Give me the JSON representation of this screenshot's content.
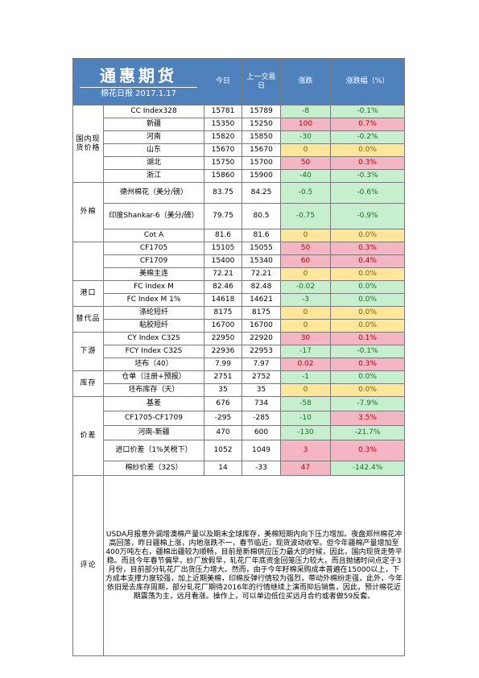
{
  "header": {
    "brand": "通惠期货",
    "subtitle": "棉花日报 2017.1.17",
    "col_today": "今日",
    "col_prev": "上一交易日",
    "col_change": "涨跌",
    "col_pct": "涨跌幅（%）"
  },
  "groups": {
    "domestic": "国内现货价格",
    "foreign": "外棉",
    "port": "港口",
    "substitute": "替代品",
    "downstream": "下游",
    "inventory": "库存",
    "spread": "价差",
    "comment": "评论"
  },
  "rows": [
    {
      "name": "CC Index328",
      "today": "15781",
      "prev": "15789",
      "change": "-8",
      "pct": "-0.1%",
      "sign": "neg"
    },
    {
      "name": "新疆",
      "today": "15350",
      "prev": "15250",
      "change": "100",
      "pct": "0.7%",
      "sign": "pos"
    },
    {
      "name": "河南",
      "today": "15820",
      "prev": "15850",
      "change": "-30",
      "pct": "-0.2%",
      "sign": "neg"
    },
    {
      "name": "山东",
      "today": "15670",
      "prev": "15670",
      "change": "0",
      "pct": "0.0%",
      "sign": "zero"
    },
    {
      "name": "湖北",
      "today": "15750",
      "prev": "15700",
      "change": "50",
      "pct": "0.3%",
      "sign": "pos"
    },
    {
      "name": "浙江",
      "today": "15860",
      "prev": "15900",
      "change": "-40",
      "pct": "-0.3%",
      "sign": "neg"
    },
    {
      "name": "德州棉花（美分/磅）",
      "today": "83.75",
      "prev": "84.25",
      "change": "-0.5",
      "pct": "-0.6%",
      "sign": "neg"
    },
    {
      "name": "印度Shankar-6（美分/磅）",
      "today": "79.75",
      "prev": "80.5",
      "change": "-0.75",
      "pct": "-0.9%",
      "sign": "neg"
    },
    {
      "name": "Cot A",
      "today": "81.6",
      "prev": "81.6",
      "change": "0",
      "pct": "0.0%",
      "sign": "zero"
    },
    {
      "name": "CF1705",
      "today": "15105",
      "prev": "15055",
      "change": "50",
      "pct": "0.3%",
      "sign": "pos"
    },
    {
      "name": "CF1709",
      "today": "15400",
      "prev": "15340",
      "change": "60",
      "pct": "0.4%",
      "sign": "pos"
    },
    {
      "name": "美棉主连",
      "today": "72.21",
      "prev": "72.21",
      "change": "0",
      "pct": "0.0%",
      "sign": "zero"
    },
    {
      "name": "FC Index M",
      "today": "82.46",
      "prev": "82.48",
      "change": "-0.02",
      "pct": "0.0%",
      "sign": "neg"
    },
    {
      "name": "FC Index M 1%",
      "today": "14618",
      "prev": "14621",
      "change": "-3",
      "pct": "0.0%",
      "sign": "neg"
    },
    {
      "name": "涤纶短纤",
      "today": "8175",
      "prev": "8175",
      "change": "0",
      "pct": "0.0%",
      "sign": "zero"
    },
    {
      "name": "粘胶短纤",
      "today": "16700",
      "prev": "16700",
      "change": "0",
      "pct": "0.0%",
      "sign": "zero"
    },
    {
      "name": "CY Index C32S",
      "today": "22950",
      "prev": "22920",
      "change": "30",
      "pct": "0.1%",
      "sign": "pos"
    },
    {
      "name": "FCY Index C32S",
      "today": "22936",
      "prev": "22953",
      "change": "-17",
      "pct": "-0.1%",
      "sign": "neg"
    },
    {
      "name": "坯布（40）",
      "today": "7.99",
      "prev": "7.97",
      "change": "0.02",
      "pct": "0.3%",
      "sign": "pos"
    },
    {
      "name": "仓单（注册+预报）",
      "today": "2751",
      "prev": "2752",
      "change": "-1",
      "pct": "0.0%",
      "sign": "neg"
    },
    {
      "name": "坯布库存（天）",
      "today": "35",
      "prev": "35",
      "change": "0",
      "pct": "0.0%",
      "sign": "zero"
    },
    {
      "name": "基差",
      "today": "676",
      "prev": "734",
      "change": "-58",
      "pct": "-7.9%",
      "sign": "neg"
    },
    {
      "name": "CF1705-CF1709",
      "today": "-295",
      "prev": "-285",
      "change": "-10",
      "pct": "3.5%",
      "sign": "neg",
      "pctsign": "pos"
    },
    {
      "name": "河南-新疆",
      "today": "470",
      "prev": "600",
      "change": "-130",
      "pct": "-21.7%",
      "sign": "neg"
    },
    {
      "name": "进口价差（1%关税下）",
      "today": "1052",
      "prev": "1049",
      "change": "3",
      "pct": "0.3%",
      "sign": "pos"
    },
    {
      "name": "棉纱价差（32S）",
      "today": "14",
      "prev": "-33",
      "change": "47",
      "pct": "-142.4%",
      "sign": "pos",
      "pctsign": "neg"
    }
  ],
  "comment_text": "USDA月报意外调增澳棉产量以及期末全球库存，美棉短期内向下压力增加。夜盘郑州棉花冲高回落，昨日疆棉上涨，内地涨跌不一，春节临近，现货波动收窄。但今年疆棉产量增加至400万吨左右，疆棉出疆较为顺畅，目前是新棉供应压力最大的时候，因此，国内现货走势平稳。而且今年春节偏早，纱厂放假早，轧花厂年底资金回笼压力较大，而且抛储时间点定于3月份，目前部分轧花厂出货压力增大。然而，由于今年籽棉采购成本普遍在15000以上，下方成本支撑力度较强，加上近期美棉，印棉反弹行情较为强烈，带动外棉纷走强，此外，今年依旧是去库存周期，部分轧花厂期待2016年的行情继续上演而抑后销售，因此，预计棉花近期震荡为主，远月看涨。操作上，可以单边低位买远月合约或者做59反套。"
}
